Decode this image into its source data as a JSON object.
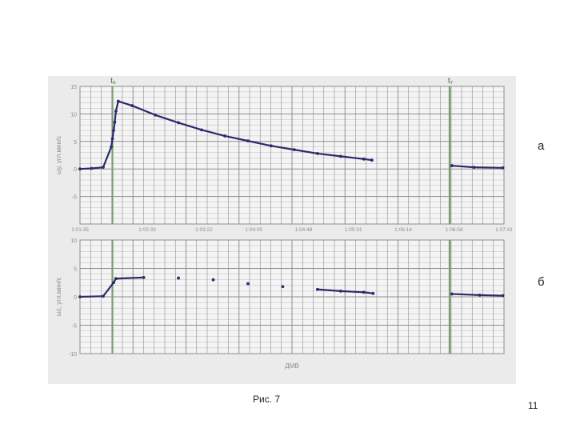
{
  "slide": {
    "panel_labels": [
      "а",
      "б"
    ],
    "caption": "Рис. 7",
    "page_number": "11"
  },
  "colors": {
    "background": "#ebebeb",
    "grid": "#8e8e8e",
    "event_line": "#7aa070",
    "data": "#2c2a6c",
    "text": "#8c8c8c"
  },
  "events": [
    {
      "label": "t₆",
      "time": "1:02:03"
    },
    {
      "label": "t₇",
      "time": "1:06:54"
    }
  ],
  "chart_data": [
    {
      "type": "scatter",
      "panel": "а",
      "xlabel": "",
      "ylabel": "ωy, угл.мин/с",
      "xlim": [
        "1:01:35",
        "1:07:41"
      ],
      "ylim": [
        -10,
        15
      ],
      "x_ticks": [
        "1:01:35",
        "1:02:33",
        "1:03:22",
        "1:04:05",
        "1:04:48",
        "1:05:31",
        "1:06:14",
        "1:06:58",
        "1:07:41"
      ],
      "y_ticks": [
        15,
        10,
        5,
        0,
        -5
      ],
      "grid": true,
      "series": [
        {
          "values": [
            {
              "x": "1:01:35",
              "y": 0.0
            },
            {
              "x": "1:01:45",
              "y": 0.1
            },
            {
              "x": "1:01:55",
              "y": 0.3
            },
            {
              "x": "1:02:02",
              "y": 4.0
            },
            {
              "x": "1:02:03",
              "y": 5.5
            },
            {
              "x": "1:02:04",
              "y": 7.0
            },
            {
              "x": "1:02:05",
              "y": 8.5
            },
            {
              "x": "1:02:06",
              "y": 10.5
            },
            {
              "x": "1:02:08",
              "y": 12.3
            },
            {
              "x": "1:02:20",
              "y": 11.5
            },
            {
              "x": "1:02:40",
              "y": 9.8
            },
            {
              "x": "1:03:00",
              "y": 8.4
            },
            {
              "x": "1:03:20",
              "y": 7.1
            },
            {
              "x": "1:03:40",
              "y": 6.0
            },
            {
              "x": "1:04:00",
              "y": 5.1
            },
            {
              "x": "1:04:20",
              "y": 4.2
            },
            {
              "x": "1:04:40",
              "y": 3.5
            },
            {
              "x": "1:05:00",
              "y": 2.8
            },
            {
              "x": "1:05:20",
              "y": 2.3
            },
            {
              "x": "1:05:40",
              "y": 1.8
            },
            {
              "x": "1:05:47",
              "y": 1.6
            },
            {
              "x": "1:06:56",
              "y": 0.6
            },
            {
              "x": "1:07:15",
              "y": 0.3
            },
            {
              "x": "1:07:40",
              "y": 0.2
            }
          ]
        }
      ]
    },
    {
      "type": "scatter",
      "panel": "б",
      "xlabel": "ДМВ",
      "ylabel": "ωz, угл.мин/с",
      "xlim": [
        "1:01:35",
        "1:07:41"
      ],
      "ylim": [
        -10,
        10
      ],
      "x_ticks": [],
      "y_ticks": [
        10,
        5,
        0,
        -5,
        -10
      ],
      "grid": true,
      "series": [
        {
          "values": [
            {
              "x": "1:01:35",
              "y": 0.0
            },
            {
              "x": "1:01:55",
              "y": 0.1
            },
            {
              "x": "1:02:04",
              "y": 2.5
            },
            {
              "x": "1:02:06",
              "y": 3.2
            },
            {
              "x": "1:02:30",
              "y": 3.4
            },
            {
              "x": "1:03:00",
              "y": 3.3
            },
            {
              "x": "1:03:30",
              "y": 3.0
            },
            {
              "x": "1:04:00",
              "y": 2.3
            },
            {
              "x": "1:04:30",
              "y": 1.8
            },
            {
              "x": "1:05:00",
              "y": 1.3
            },
            {
              "x": "1:05:20",
              "y": 1.0
            },
            {
              "x": "1:05:40",
              "y": 0.8
            },
            {
              "x": "1:05:48",
              "y": 0.6
            },
            {
              "x": "1:06:56",
              "y": 0.5
            },
            {
              "x": "1:07:20",
              "y": 0.3
            },
            {
              "x": "1:07:40",
              "y": 0.2
            }
          ]
        }
      ]
    }
  ]
}
